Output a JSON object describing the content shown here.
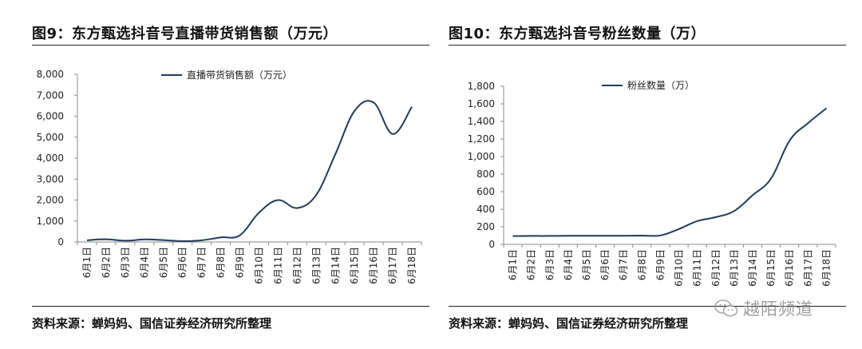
{
  "left": {
    "title": "图9：东方甄选抖音号直播带货销售额（万元）",
    "source": "资料来源：蝉妈妈、国信证券经济研究所整理"
  },
  "right": {
    "title": "图10：东方甄选抖音号粉丝数量（万）",
    "source": "资料来源：蝉妈妈、国信证券经济研究所整理"
  },
  "watermark": {
    "text": "越陌频道"
  },
  "colors": {
    "series": "#1f3b5c",
    "axis": "#8a8a8a"
  },
  "chart_data": [
    {
      "type": "line",
      "title": "图9：东方甄选抖音号直播带货销售额（万元）",
      "xlabel": "",
      "ylabel": "",
      "categories": [
        "6月1日",
        "6月2日",
        "6月3日",
        "6月4日",
        "6月5日",
        "6月6日",
        "6月7日",
        "6月8日",
        "6月9日",
        "6月10日",
        "6月11日",
        "6月12日",
        "6月13日",
        "6月14日",
        "6月15日",
        "6月16日",
        "6月17日",
        "6月18日"
      ],
      "series": [
        {
          "name": "直播带货销售额（万元）",
          "values": [
            80,
            130,
            60,
            120,
            90,
            40,
            80,
            220,
            320,
            1400,
            2000,
            1620,
            2250,
            4200,
            6250,
            6650,
            5150,
            6450
          ]
        }
      ],
      "ylim": [
        0,
        8000
      ],
      "yticks": [
        0,
        1000,
        2000,
        3000,
        4000,
        5000,
        6000,
        7000,
        8000
      ],
      "ytick_labels": [
        "0",
        "1,000",
        "2,000",
        "3,000",
        "4,000",
        "5,000",
        "6,000",
        "7,000",
        "8,000"
      ],
      "legend": "top-center",
      "grid": false
    },
    {
      "type": "line",
      "title": "图10：东方甄选抖音号粉丝数量（万）",
      "xlabel": "",
      "ylabel": "",
      "categories": [
        "6月1日",
        "6月2日",
        "6月3日",
        "6月4日",
        "6月5日",
        "6月6日",
        "6月7日",
        "6月8日",
        "6月9日",
        "6月10日",
        "6月11日",
        "6月12日",
        "6月13日",
        "6月14日",
        "6月15日",
        "6月16日",
        "6月17日",
        "6月18日"
      ],
      "series": [
        {
          "name": "粉丝数量（万）",
          "values": [
            95,
            96,
            96,
            97,
            97,
            98,
            98,
            100,
            102,
            175,
            265,
            310,
            380,
            560,
            750,
            1180,
            1380,
            1550
          ]
        }
      ],
      "ylim": [
        0,
        1800
      ],
      "yticks": [
        0,
        200,
        400,
        600,
        800,
        1000,
        1200,
        1400,
        1600,
        1800
      ],
      "ytick_labels": [
        "0",
        "200",
        "400",
        "600",
        "800",
        "1,000",
        "1,200",
        "1,400",
        "1,600",
        "1,800"
      ],
      "legend": "top-center",
      "grid": false
    }
  ]
}
